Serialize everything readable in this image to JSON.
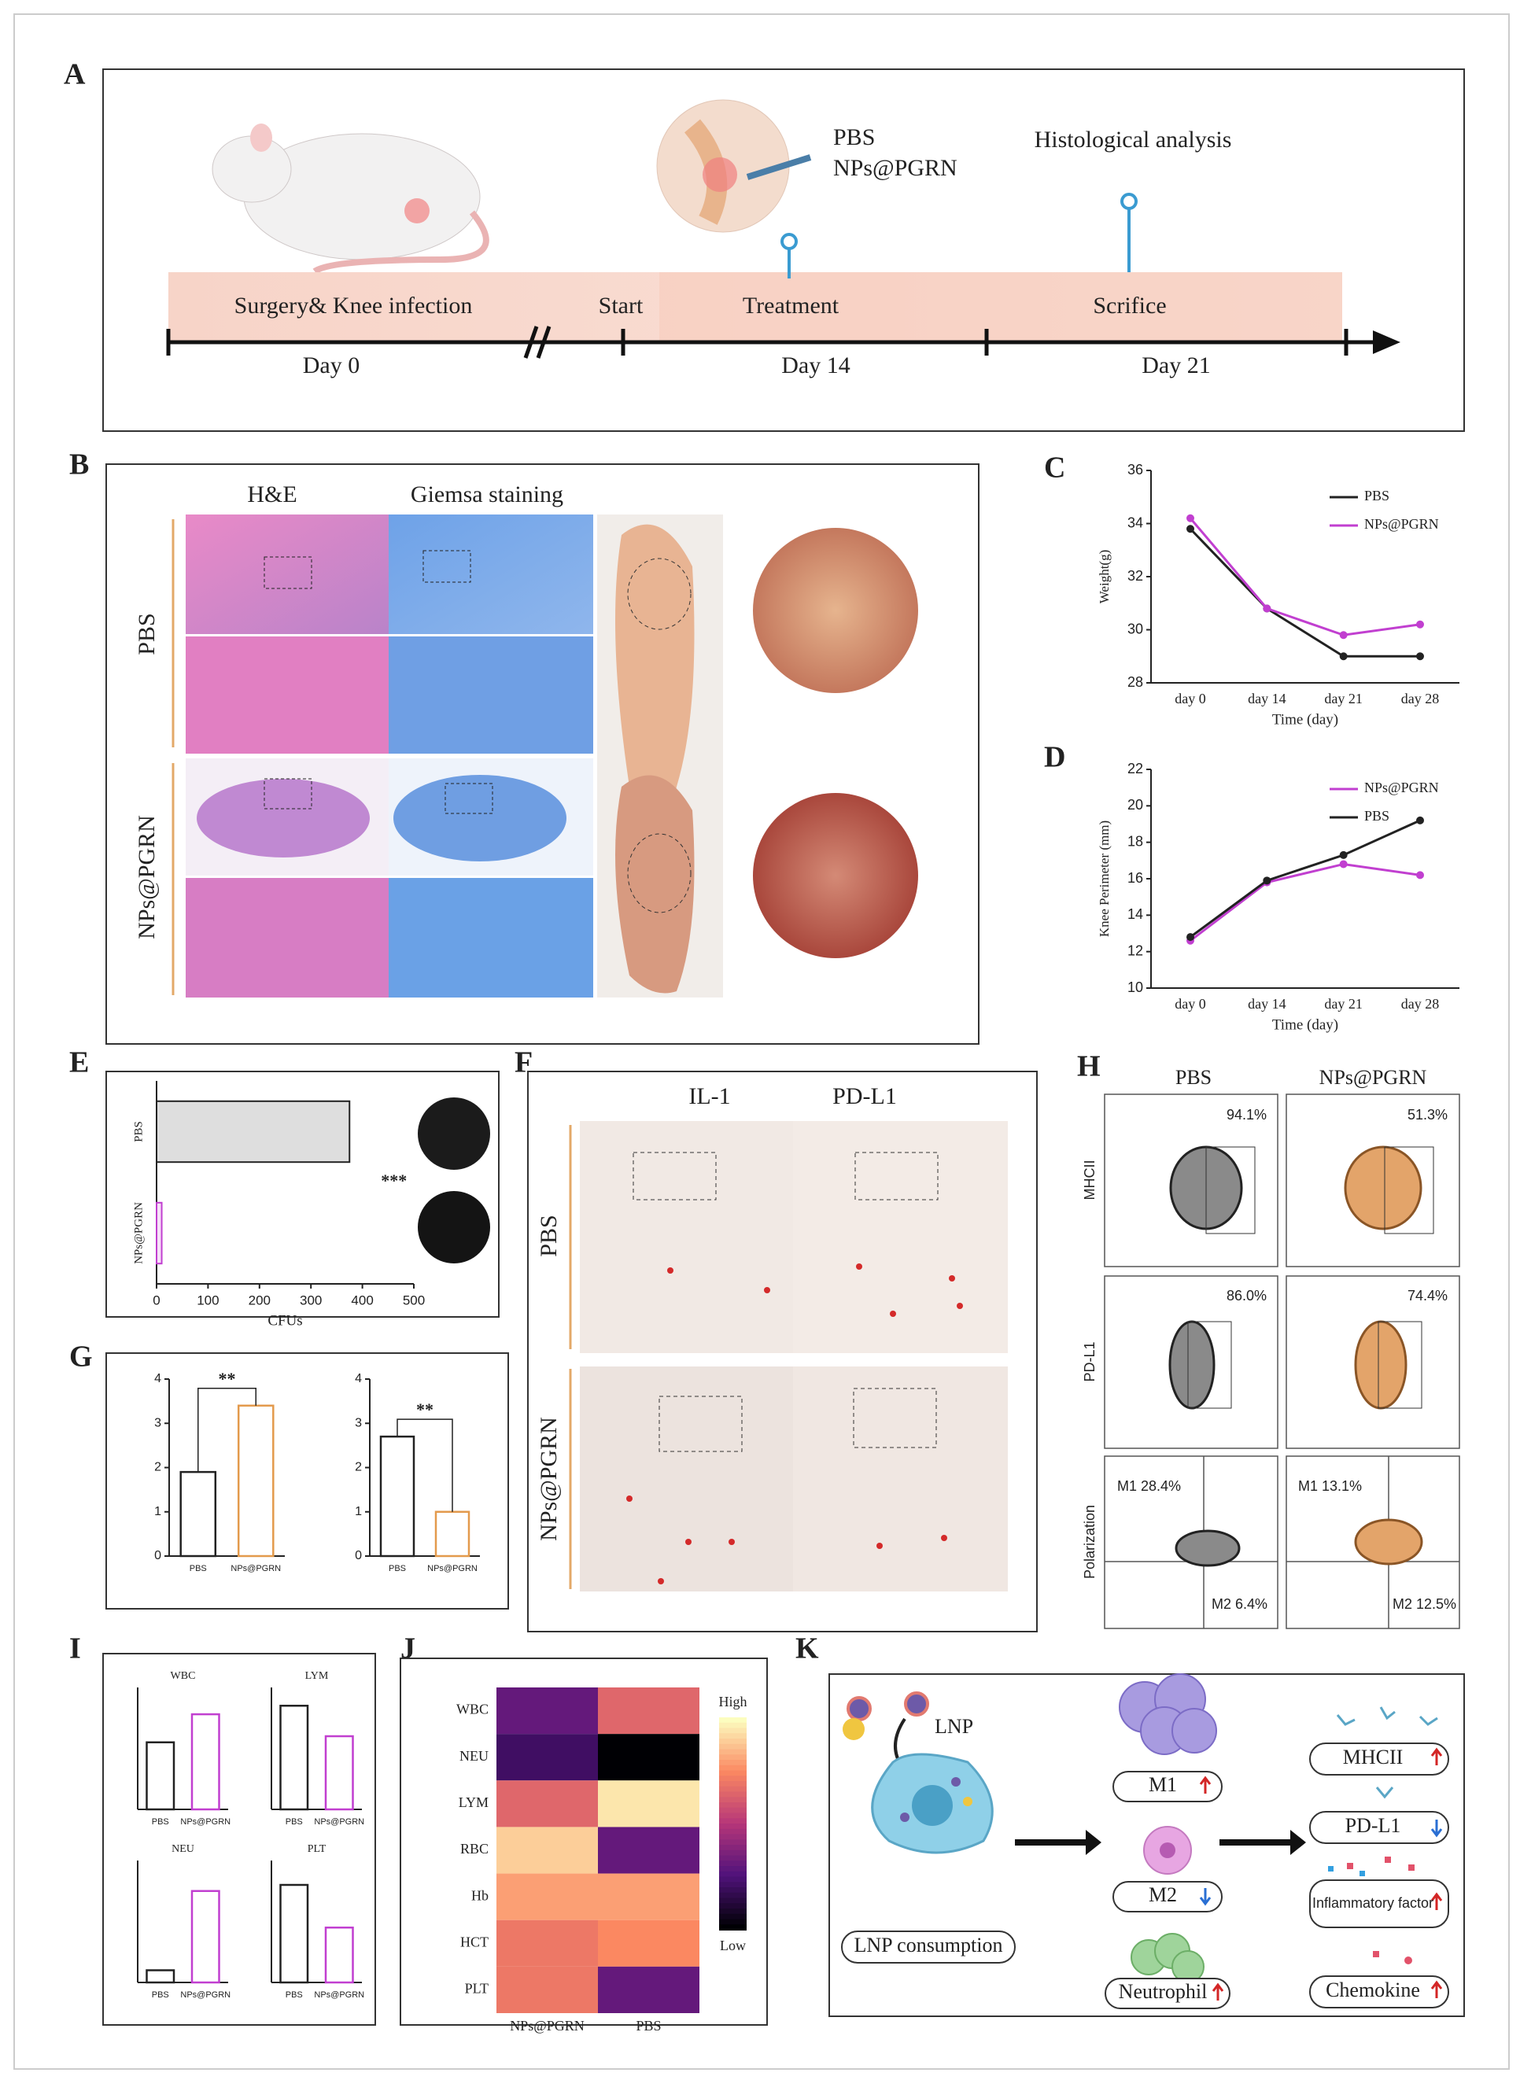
{
  "panels": {
    "A": {
      "letter": "A",
      "treatments": [
        "PBS",
        "NPs@PGRN"
      ],
      "histology": "Histological analysis",
      "phases": [
        "Surgery& Knee infection",
        "Start",
        "Treatment",
        "Scrifice"
      ],
      "days": [
        "Day 0",
        "Day 14",
        "Day 21"
      ]
    },
    "B": {
      "letter": "B",
      "stains": [
        "H&E",
        "Giemsa staining"
      ],
      "groups": [
        "PBS",
        "NPs@PGRN"
      ]
    },
    "C": {
      "letter": "C"
    },
    "D": {
      "letter": "D"
    },
    "E": {
      "letter": "E"
    },
    "F": {
      "letter": "F",
      "markers": [
        "IL-1",
        "PD-L1"
      ],
      "groups": [
        "PBS",
        "NPs@PGRN"
      ]
    },
    "G": {
      "letter": "G"
    },
    "H": {
      "letter": "H",
      "groups": [
        "PBS",
        "NPs@PGRN"
      ],
      "rows": [
        "MHCII",
        "PD-L1",
        "Polarization"
      ],
      "gates": [
        [
          "94.1%",
          "51.3%"
        ],
        [
          "86.0%",
          "74.4%"
        ]
      ],
      "quadrants": [
        [
          "M1 28.4%",
          "M2 6.4%"
        ],
        [
          "M1 13.1%",
          "M2 12.5%"
        ]
      ]
    },
    "I": {
      "letter": "I"
    },
    "J": {
      "letter": "J"
    },
    "K": {
      "letter": "K",
      "lnp": "LNP",
      "consumption": "LNP consumption",
      "cells": [
        "M1",
        "M2",
        "Neutrophil"
      ],
      "outcomes": [
        "MHCII",
        "PD-L1",
        "Inflammatory factor",
        "Chemokine"
      ]
    }
  },
  "chart_data": [
    {
      "type": "line",
      "categories": [
        "day 0",
        "day 14",
        "day 21",
        "day 28"
      ],
      "xlabel": "Time (day)",
      "ylabel": "Weight(g)",
      "ylim": [
        28,
        36
      ],
      "yticks": [
        28,
        30,
        32,
        34,
        36
      ],
      "series": [
        {
          "name": "PBS",
          "color": "#222222",
          "values": [
            33.8,
            30.8,
            29,
            29
          ]
        },
        {
          "name": "NPs@PGRN",
          "color": "#c13fd0",
          "values": [
            34.2,
            30.8,
            29.8,
            30.2
          ]
        }
      ]
    },
    {
      "type": "line",
      "categories": [
        "day 0",
        "day 14",
        "day 21",
        "day 28"
      ],
      "xlabel": "Time (day)",
      "ylabel": "Knee Perimeter (mm)",
      "ylim": [
        10,
        22
      ],
      "yticks": [
        10,
        12,
        14,
        16,
        18,
        20,
        22
      ],
      "series": [
        {
          "name": "NPs@PGRN",
          "color": "#c13fd0",
          "values": [
            12.6,
            15.8,
            16.8,
            16.2
          ]
        },
        {
          "name": "PBS",
          "color": "#222222",
          "values": [
            12.8,
            15.9,
            17.3,
            19.2
          ]
        }
      ]
    },
    {
      "type": "hbar",
      "categories": [
        "PBS",
        "NPs@PGRN"
      ],
      "values": [
        375,
        10
      ],
      "colors": [
        "#222222",
        "#c13fd0"
      ],
      "xlim": [
        0,
        500
      ],
      "xticks": [
        0,
        100,
        200,
        300,
        400,
        500
      ],
      "xlabel": "CFUs",
      "annotation": "***"
    },
    {
      "type": "bar",
      "categories": [
        "PBS",
        "NPs@PGRN"
      ],
      "values": [
        1.9,
        3.4
      ],
      "colors": [
        "#222222",
        "#e39a4c"
      ],
      "ylim": [
        0,
        4
      ],
      "yticks": [
        0,
        1,
        2,
        3,
        4
      ],
      "annotation": "**"
    },
    {
      "type": "bar",
      "categories": [
        "PBS",
        "NPs@PGRN"
      ],
      "values": [
        2.7,
        1.0
      ],
      "colors": [
        "#222222",
        "#e39a4c"
      ],
      "ylim": [
        0,
        4
      ],
      "yticks": [
        0,
        1,
        2,
        3,
        4
      ],
      "annotation": "**"
    },
    {
      "type": "heatmap",
      "rows": [
        "WBC",
        "NEU",
        "LYM",
        "RBC",
        "Hb",
        "HCT",
        "PLT"
      ],
      "columns": [
        "NPs@PGRN",
        "PBS"
      ],
      "values": [
        [
          0.3,
          0.65
        ],
        [
          0.2,
          0.0
        ],
        [
          0.65,
          0.95
        ],
        [
          0.9,
          0.3
        ],
        [
          0.8,
          0.8
        ],
        [
          0.7,
          0.75
        ],
        [
          0.7,
          0.3
        ]
      ],
      "colorbar_labels": [
        "High",
        "Low"
      ]
    },
    {
      "type": "bar",
      "title": "WBC",
      "categories": [
        "PBS",
        "NPs@PGRN"
      ],
      "values": [
        0.55,
        0.78
      ],
      "colors": [
        "#222222",
        "#c13fd0"
      ],
      "ylim": [
        0,
        1
      ]
    },
    {
      "type": "bar",
      "title": "LYM",
      "categories": [
        "PBS",
        "NPs@PGRN"
      ],
      "values": [
        0.85,
        0.6
      ],
      "colors": [
        "#222222",
        "#c13fd0"
      ],
      "ylim": [
        0,
        1
      ]
    },
    {
      "type": "bar",
      "title": "NEU",
      "categories": [
        "PBS",
        "NPs@PGRN"
      ],
      "values": [
        0.1,
        0.75
      ],
      "colors": [
        "#222222",
        "#c13fd0"
      ],
      "ylim": [
        0,
        1
      ]
    },
    {
      "type": "bar",
      "title": "PLT",
      "categories": [
        "PBS",
        "NPs@PGRN"
      ],
      "values": [
        0.8,
        0.45
      ],
      "colors": [
        "#222222",
        "#c13fd0"
      ],
      "ylim": [
        0,
        1
      ]
    }
  ]
}
